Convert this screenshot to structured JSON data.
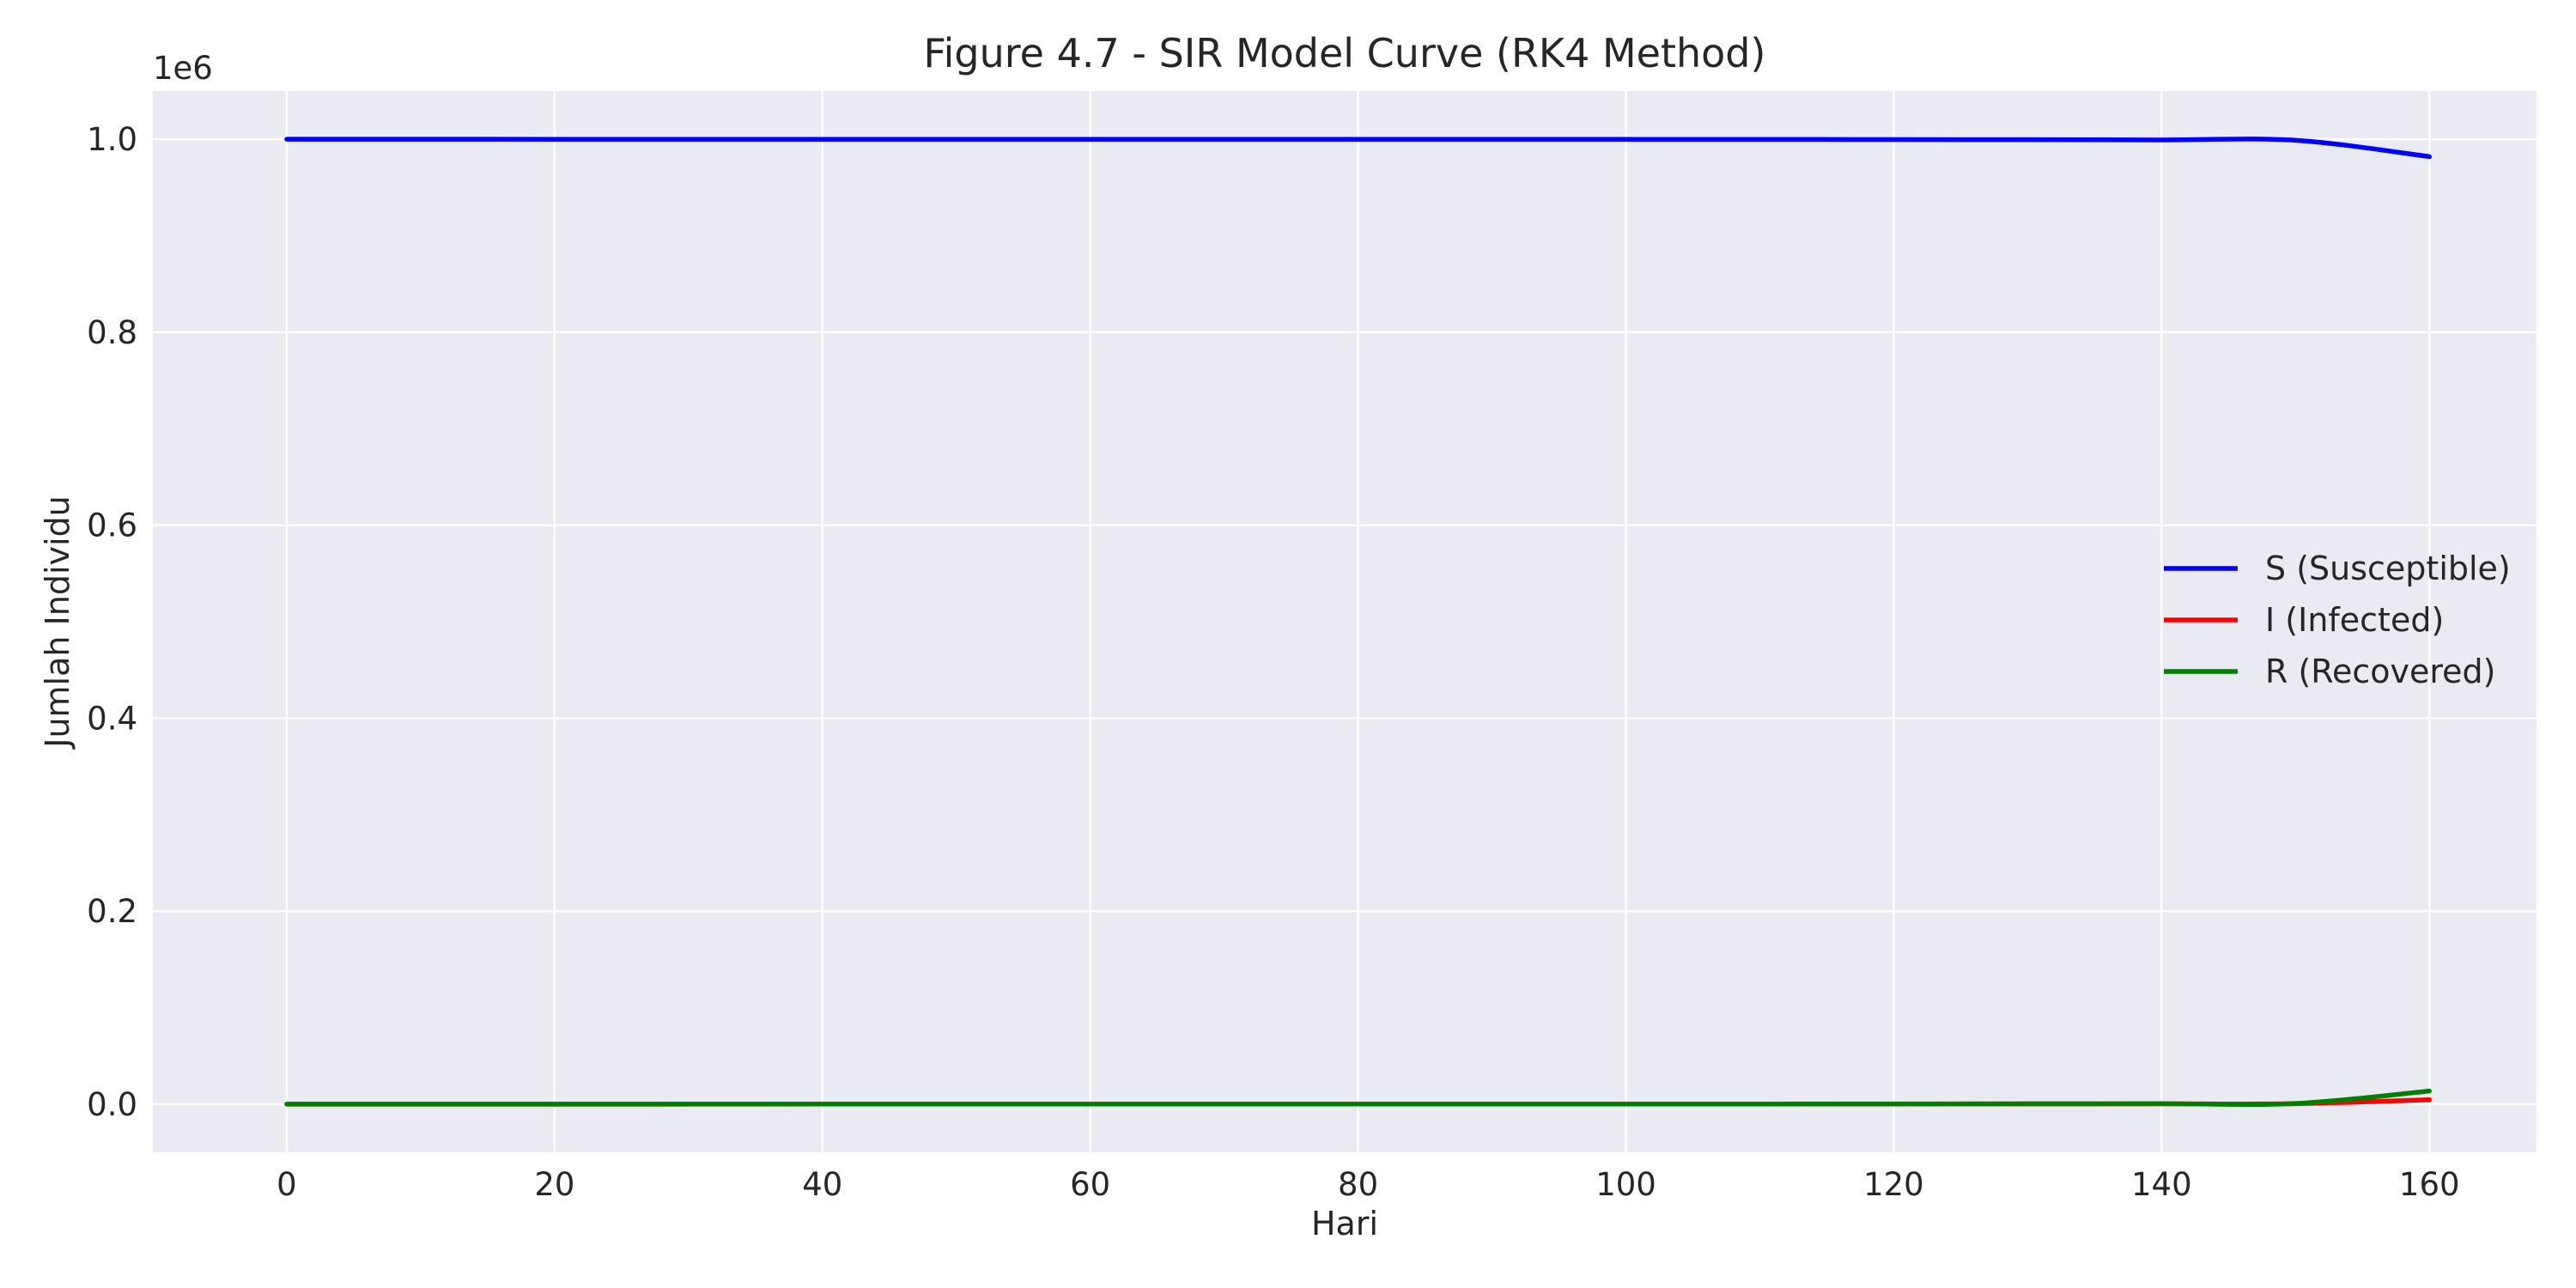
{
  "chart_data": {
    "type": "line",
    "title": "Figure 4.7 - SIR Model Curve (RK4 Method)",
    "xlabel": "Hari",
    "ylabel": "Jumlah Individu",
    "y_offset_label": "1e6",
    "xlim": [
      -10,
      168
    ],
    "ylim": [
      -50000,
      1050000
    ],
    "x_ticks": [
      0,
      20,
      40,
      60,
      80,
      100,
      120,
      140,
      160
    ],
    "x_tick_labels": [
      "0",
      "20",
      "40",
      "60",
      "80",
      "100",
      "120",
      "140",
      "160"
    ],
    "y_ticks": [
      0,
      200000,
      400000,
      600000,
      800000,
      1000000
    ],
    "y_tick_labels": [
      "0.0",
      "0.2",
      "0.4",
      "0.6",
      "0.8",
      "1.0"
    ],
    "grid": true,
    "legend_position": "center-right",
    "x": [
      0,
      10,
      20,
      30,
      40,
      50,
      60,
      70,
      80,
      90,
      100,
      110,
      120,
      130,
      140,
      150,
      160
    ],
    "series": [
      {
        "name": "S (Susceptible)",
        "color": "#0000ff",
        "values": [
          999999,
          999998,
          999997,
          999995,
          999992,
          999988,
          999981,
          999970,
          999953,
          999927,
          999886,
          999822,
          999722,
          999567,
          999325,
          998950,
          982000
        ]
      },
      {
        "name": "I (Infected)",
        "color": "#ff0000",
        "values": [
          1,
          1,
          2,
          2,
          3,
          5,
          8,
          12,
          19,
          29,
          45,
          70,
          110,
          170,
          265,
          410,
          4500
        ]
      },
      {
        "name": "R (Recovered)",
        "color": "#008000",
        "values": [
          0,
          1,
          1,
          3,
          5,
          7,
          11,
          18,
          28,
          44,
          69,
          108,
          168,
          263,
          410,
          640,
          13500
        ]
      }
    ]
  }
}
